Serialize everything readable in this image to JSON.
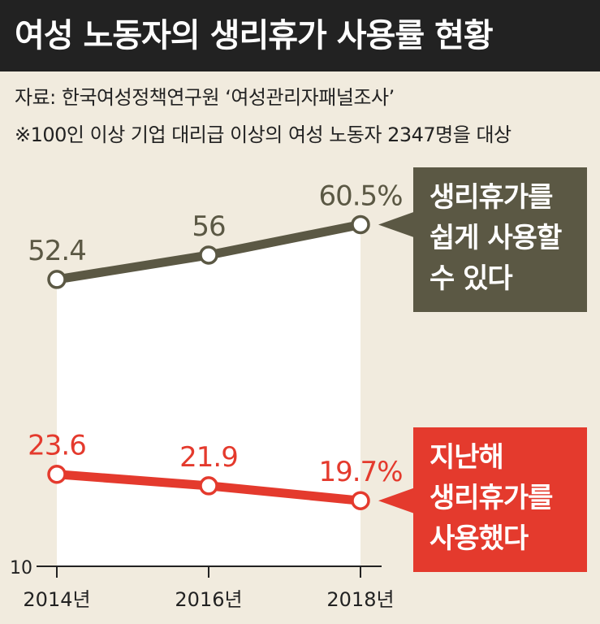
{
  "title": "여성 노동자의 생리휴가 사용률 현황",
  "source": "자료: 한국여성정책연구원 ‘여성관리자패널조사’",
  "note": "※100인 이상 기업 대리급 이상의 여성 노동자 2347명을 대상",
  "colors": {
    "easy_series": "#5b5844",
    "used_series": "#e43a2d",
    "background": "#f1ebde",
    "title_bg": "#222222"
  },
  "chart_data": {
    "type": "line",
    "categories": [
      "2014년",
      "2016년",
      "2018년"
    ],
    "ylim": [
      10,
      65
    ],
    "ytick_labels": [
      "10"
    ],
    "grid": false,
    "legend": "right",
    "series": [
      {
        "key": "easy",
        "label_lines": [
          "생리휴가를",
          "쉽게 사용할",
          "수 있다"
        ],
        "values": [
          52.4,
          56,
          60.5
        ],
        "value_labels": [
          "52.4",
          "56",
          "60.5%"
        ]
      },
      {
        "key": "used",
        "label_lines": [
          "지난해",
          "생리휴가를",
          "사용했다"
        ],
        "values": [
          23.6,
          21.9,
          19.7
        ],
        "value_labels": [
          "23.6",
          "21.9",
          "19.7%"
        ]
      }
    ]
  }
}
